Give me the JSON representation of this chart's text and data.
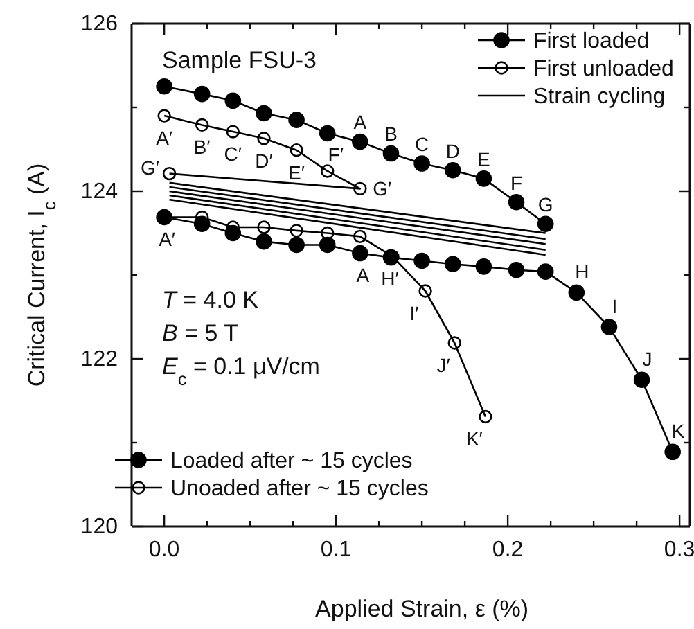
{
  "chart_data": {
    "type": "line",
    "xlabel": "Applied Strain, ε (%)",
    "ylabel": "Critical Current, I$_{c}$ (A)",
    "xlim": [
      -0.019,
      0.306
    ],
    "ylim": [
      120,
      126
    ],
    "xticks": [
      {
        "value": 0,
        "label": "0.0"
      },
      {
        "value": 0.025,
        "label": null
      },
      {
        "value": 0.05,
        "label": null
      },
      {
        "value": 0.075,
        "label": null
      },
      0.1,
      {
        "value": 0.125,
        "label": null
      },
      {
        "value": 0.15,
        "label": null
      },
      {
        "value": 0.175,
        "label": null
      },
      0.2,
      {
        "value": 0.225,
        "label": null
      },
      {
        "value": 0.25,
        "label": null
      },
      {
        "value": 0.275,
        "label": null
      },
      0.3
    ],
    "yticks": [
      120,
      {
        "value": 121,
        "label": null
      },
      122,
      {
        "value": 123,
        "label": null
      },
      124,
      {
        "value": 125,
        "label": null
      },
      126
    ],
    "grid": false,
    "legend": "top right",
    "series": [
      {
        "name": "First loaded",
        "color": "#000000",
        "marker": "circle",
        "x": [
          0,
          0.022,
          0.04,
          0.058,
          0.077,
          0.095,
          0.114,
          0.132,
          0.15,
          0.168,
          0.186,
          0.205,
          0.222
        ],
        "values": [
          125.25,
          125.16,
          125.08,
          124.93,
          124.85,
          124.69,
          124.59,
          124.45,
          124.33,
          124.25,
          124.15,
          123.87,
          123.61
        ]
      },
      {
        "name": "First unloaded",
        "color": "#000000",
        "marker": "circle-open",
        "x": [
          0,
          0.022,
          0.04,
          0.058,
          0.077,
          0.095,
          0.114,
          0.003
        ],
        "values": [
          124.9,
          124.79,
          124.71,
          124.63,
          124.49,
          124.24,
          124.03,
          124.21
        ]
      },
      {
        "name": "Strain cycling",
        "color": "#000000",
        "marker": "none",
        "x": [
          0.003,
          0.222
        ],
        "values": [
          124.1,
          123.5
        ]
      },
      {
        "color": "#000000",
        "marker": "none",
        "x": [
          0.003,
          0.222
        ],
        "values": [
          124.05,
          123.43
        ]
      },
      {
        "color": "#000000",
        "marker": "none",
        "x": [
          0.003,
          0.222
        ],
        "values": [
          124.0,
          123.37
        ]
      },
      {
        "color": "#000000",
        "marker": "none",
        "x": [
          0.003,
          0.222
        ],
        "values": [
          123.95,
          123.3
        ]
      },
      {
        "color": "#000000",
        "marker": "none",
        "x": [
          0.003,
          0.222
        ],
        "values": [
          123.9,
          123.24
        ]
      },
      {
        "name": "Loaded after ~ 15 cycles",
        "color": "#000000",
        "marker": "circle",
        "x": [
          0,
          0.022,
          0.04,
          0.058,
          0.077,
          0.095,
          0.114,
          0.132,
          0.15,
          0.168,
          0.186,
          0.205,
          0.222,
          0.24,
          0.259,
          0.278,
          0.296
        ],
        "values": [
          123.69,
          123.61,
          123.5,
          123.4,
          123.36,
          123.36,
          123.26,
          123.21,
          123.17,
          123.13,
          123.1,
          123.06,
          123.04,
          122.79,
          122.38,
          121.75,
          120.89
        ]
      },
      {
        "name": "Unoaded after ~ 15 cycles",
        "color": "#000000",
        "marker": "circle-open",
        "x": [
          0,
          0.022,
          0.04,
          0.058,
          0.077,
          0.095,
          0.114,
          0.133,
          0.152,
          0.169,
          0.187
        ],
        "values": [
          123.69,
          123.69,
          123.57,
          123.57,
          123.53,
          123.5,
          123.46,
          123.22,
          122.81,
          122.19,
          121.31
        ]
      }
    ],
    "annotations": [
      "Sample FSU-3",
      "T = 4.0 K",
      "B = 5 T",
      "E$_{c}$ = 0.1 μV/cm",
      {
        "text": "A",
        "x": 0.114,
        "y": 124.59
      },
      {
        "text": "B",
        "x": 0.132,
        "y": 124.45
      },
      {
        "text": "C",
        "x": 0.15,
        "y": 124.33
      },
      {
        "text": "D",
        "x": 0.168,
        "y": 124.25
      },
      {
        "text": "E",
        "x": 0.186,
        "y": 124.15
      },
      {
        "text": "F",
        "x": 0.205,
        "y": 123.87
      },
      {
        "text": "G",
        "x": 0.222,
        "y": 123.61
      },
      {
        "text": "A′",
        "x": 0,
        "y": 124.9
      },
      {
        "text": "B′",
        "x": 0.022,
        "y": 124.79
      },
      {
        "text": "C′",
        "x": 0.04,
        "y": 124.71
      },
      {
        "text": "D′",
        "x": 0.058,
        "y": 124.63
      },
      {
        "text": "E′",
        "x": 0.077,
        "y": 124.49
      },
      {
        "text": "F′",
        "x": 0.095,
        "y": 124.24
      },
      {
        "text": "G′",
        "x": 0.114,
        "y": 124.03
      },
      {
        "text": "G′",
        "x": 0.003,
        "y": 124.21
      },
      {
        "text": "A′",
        "x": 0,
        "y": 123.69
      },
      {
        "text": "A",
        "x": 0.114,
        "y": 123.26
      },
      {
        "text": "H",
        "x": 0.24,
        "y": 122.79
      },
      {
        "text": "I",
        "x": 0.259,
        "y": 122.38
      },
      {
        "text": "J",
        "x": 0.278,
        "y": 121.75
      },
      {
        "text": "K",
        "x": 0.296,
        "y": 120.89
      },
      {
        "text": "H′",
        "x": 0.133,
        "y": 123.22
      },
      {
        "text": "I′",
        "x": 0.152,
        "y": 122.81
      },
      {
        "text": "J′",
        "x": 0.169,
        "y": 122.19
      },
      {
        "text": "K′",
        "x": 0.187,
        "y": 121.31
      }
    ]
  }
}
